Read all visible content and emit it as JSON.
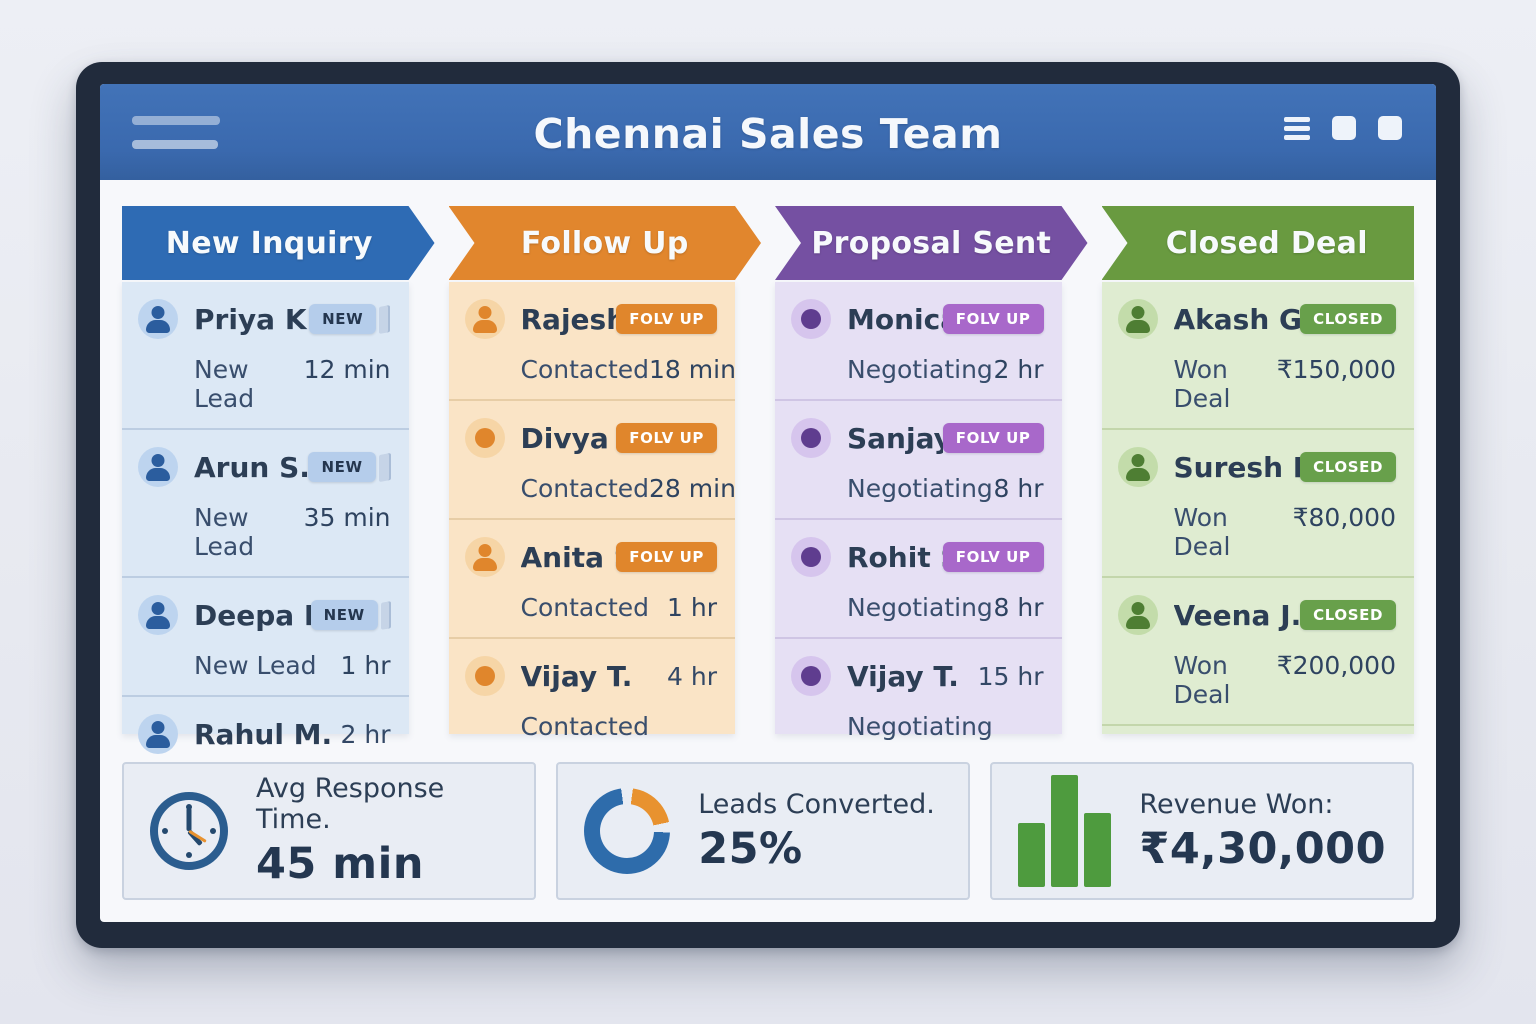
{
  "app": {
    "title": "Chennai Sales Team"
  },
  "header": {
    "bg_color": "#3a69ae",
    "left_icon": "hamburger-icon",
    "right_icons": [
      "list-icon",
      "square-icon",
      "square-icon"
    ]
  },
  "pipeline": {
    "columns": [
      {
        "id": "new-inquiry",
        "label": "New Inquiry",
        "colors": {
          "header": "#2e6bb4",
          "body": "#dce8f5",
          "divider": "#bccde2",
          "badge_bg": "#b5cdeb",
          "badge_fg": "#24364f",
          "avatar_bg": "#bdd4ef",
          "avatar_fg": "#2b5d9e"
        },
        "badge_has_fold": true,
        "divider_after_last": false,
        "cards": [
          {
            "name": "Priya K.",
            "avatar": "person",
            "badge": "NEW",
            "status": "New Lead",
            "value": "12 min"
          },
          {
            "name": "Arun S.",
            "avatar": "person",
            "badge": "NEW",
            "status": "New Lead",
            "value": "35 min"
          },
          {
            "name": "Deepa N.",
            "avatar": "person",
            "badge": "NEW",
            "status": "New Lead",
            "value": "1 hr"
          },
          {
            "name": "Rahul M.",
            "avatar": "person",
            "badge": null,
            "status": "New Lead",
            "value": "2 hr"
          }
        ]
      },
      {
        "id": "follow-up",
        "label": "Follow Up",
        "colors": {
          "header": "#e1862d",
          "body": "#fae4c6",
          "divider": "#e7cda6",
          "badge_bg": "#e0862c",
          "badge_fg": "#ffffff",
          "avatar_bg": "#f6d5a6",
          "avatar_fg": "#e0862c"
        },
        "badge_has_fold": false,
        "divider_after_last": false,
        "cards": [
          {
            "name": "Rajesh M",
            "avatar": "person",
            "badge": "FOLV UP",
            "status": "Contacted",
            "value": "18 min"
          },
          {
            "name": "Divya B.",
            "avatar": "dot",
            "badge": "FOLV UP",
            "status": "Contacted",
            "value": "28 min"
          },
          {
            "name": "Anita S.",
            "avatar": "person",
            "badge": "FOLV UP",
            "status": "Contacted",
            "value": "1 hr"
          },
          {
            "name": "Vijay T.",
            "avatar": "dot",
            "badge": null,
            "status": "Contacted",
            "value": "4 hr"
          }
        ]
      },
      {
        "id": "proposal-sent",
        "label": "Proposal Sent",
        "colors": {
          "header": "#7550a2",
          "body": "#e6e0f4",
          "divider": "#cfc5e4",
          "badge_bg": "#a868ca",
          "badge_fg": "#ffffff",
          "avatar_bg": "#d6c5ed",
          "avatar_fg": "#5f3d8f"
        },
        "badge_has_fold": false,
        "divider_after_last": false,
        "cards": [
          {
            "name": "Monica R.",
            "avatar": "dot",
            "badge": "FOLV UP",
            "status": "Negotiating",
            "value": "2 hr"
          },
          {
            "name": "Sanjay T.",
            "avatar": "dot",
            "badge": "FOLV UP",
            "status": "Negotiating",
            "value": "8 hr"
          },
          {
            "name": "Rohit S.",
            "avatar": "dot",
            "badge": "FOLV UP",
            "status": "Negotiating",
            "value": "8 hr"
          },
          {
            "name": "Vijay T.",
            "avatar": "dot",
            "badge": null,
            "status": "Negotiating",
            "value": "15 hr"
          }
        ]
      },
      {
        "id": "closed-deal",
        "label": "Closed Deal",
        "colors": {
          "header": "#699a40",
          "body": "#dfecd1",
          "divider": "#c3d6ab",
          "badge_bg": "#68a04b",
          "badge_fg": "#ffffff",
          "avatar_bg": "#c3dcaa",
          "avatar_fg": "#4e7e33"
        },
        "badge_has_fold": false,
        "divider_after_last": true,
        "cards": [
          {
            "name": "Akash G.",
            "avatar": "person",
            "badge": "CLOSED",
            "status": "Won Deal",
            "value": "₹150,000"
          },
          {
            "name": "Suresh P.",
            "avatar": "person",
            "badge": "CLOSED",
            "status": "Won Deal",
            "value": "₹80,000"
          },
          {
            "name": "Veena J.",
            "avatar": "person",
            "badge": "CLOSED",
            "status": "Won Deal",
            "value": "₹200,000"
          }
        ]
      }
    ]
  },
  "kpis": [
    {
      "id": "avg-response-time",
      "icon": "clock-icon",
      "label": "Avg Response Time.",
      "value": "45 min"
    },
    {
      "id": "leads-converted",
      "icon": "donut-chart-icon",
      "label": "Leads Converted.",
      "value": "25%"
    },
    {
      "id": "revenue-won",
      "icon": "bar-chart-icon",
      "label": "Revenue Won:",
      "value": "₹4,30,000"
    }
  ]
}
